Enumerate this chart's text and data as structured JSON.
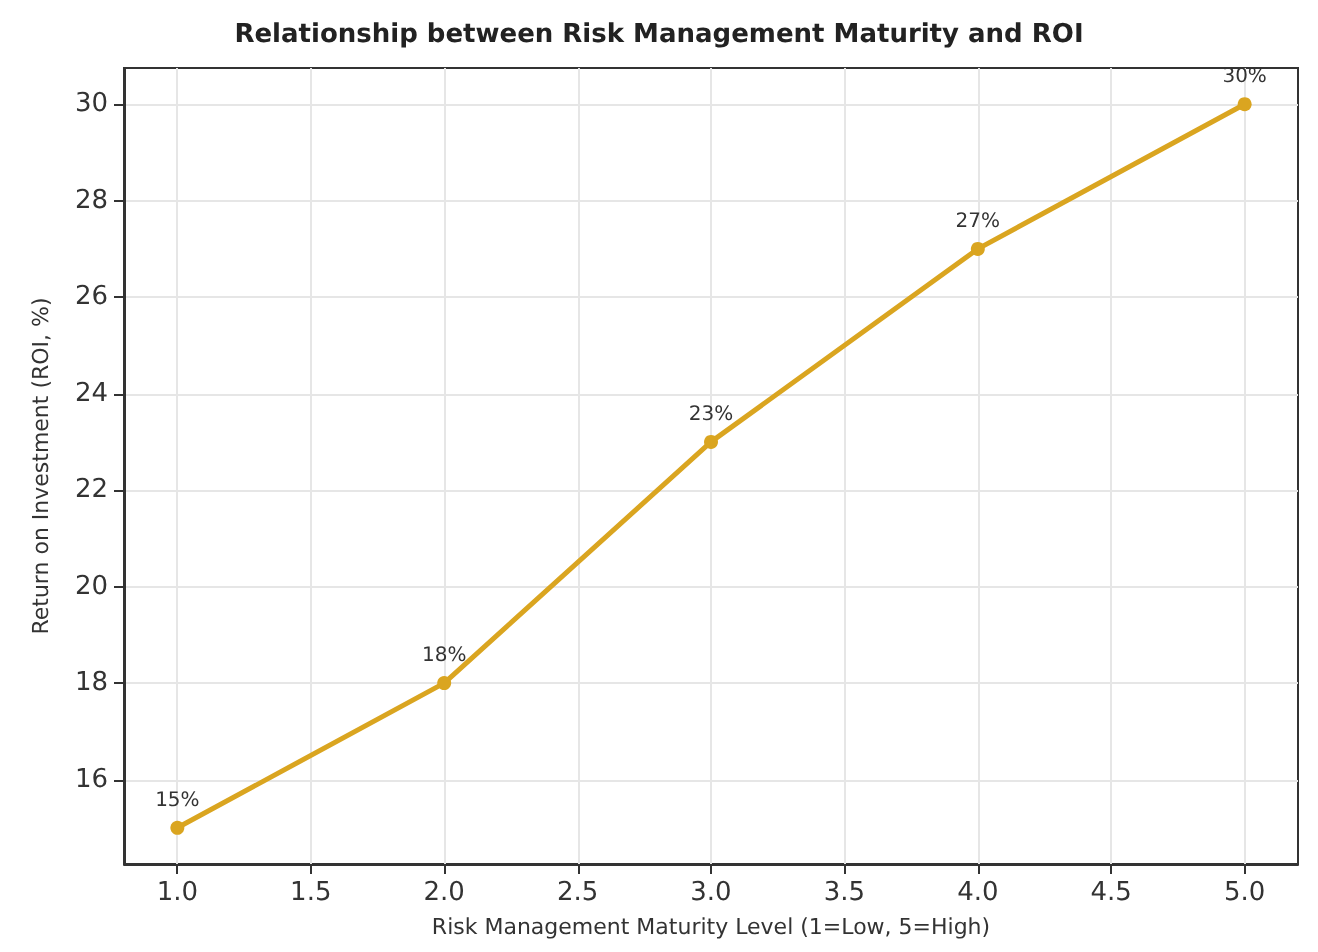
{
  "chart_data": {
    "type": "line",
    "title": "Relationship between Risk Management Maturity and ROI",
    "xlabel": "Risk Management Maturity Level (1=Low, 5=High)",
    "ylabel": "Return on Investment (ROI, %)",
    "x": [
      1,
      2,
      3,
      4,
      5
    ],
    "series": [
      {
        "color": "#daa520",
        "values": [
          15,
          18,
          23,
          27,
          30
        ],
        "value_labels": [
          "15%",
          "18%",
          "23%",
          "27%",
          "30%"
        ]
      }
    ],
    "xlim": [
      0.8,
      5.2
    ],
    "xticks": [
      {
        "value": 1,
        "label": "1.0"
      },
      {
        "value": 1.5,
        "label": "1.5"
      },
      {
        "value": 2,
        "label": "2.0"
      },
      {
        "value": 2.5,
        "label": "2.5"
      },
      {
        "value": 3,
        "label": "3.0"
      },
      {
        "value": 3.5,
        "label": "3.5"
      },
      {
        "value": 4,
        "label": "4.0"
      },
      {
        "value": 4.5,
        "label": "4.5"
      },
      {
        "value": 5,
        "label": "5.0"
      }
    ],
    "ylim": [
      14.25,
      30.75
    ],
    "yticks": [
      16,
      18,
      20,
      22,
      24,
      26,
      28,
      30
    ],
    "grid": true,
    "marker": "circle",
    "line_style": "solid"
  }
}
